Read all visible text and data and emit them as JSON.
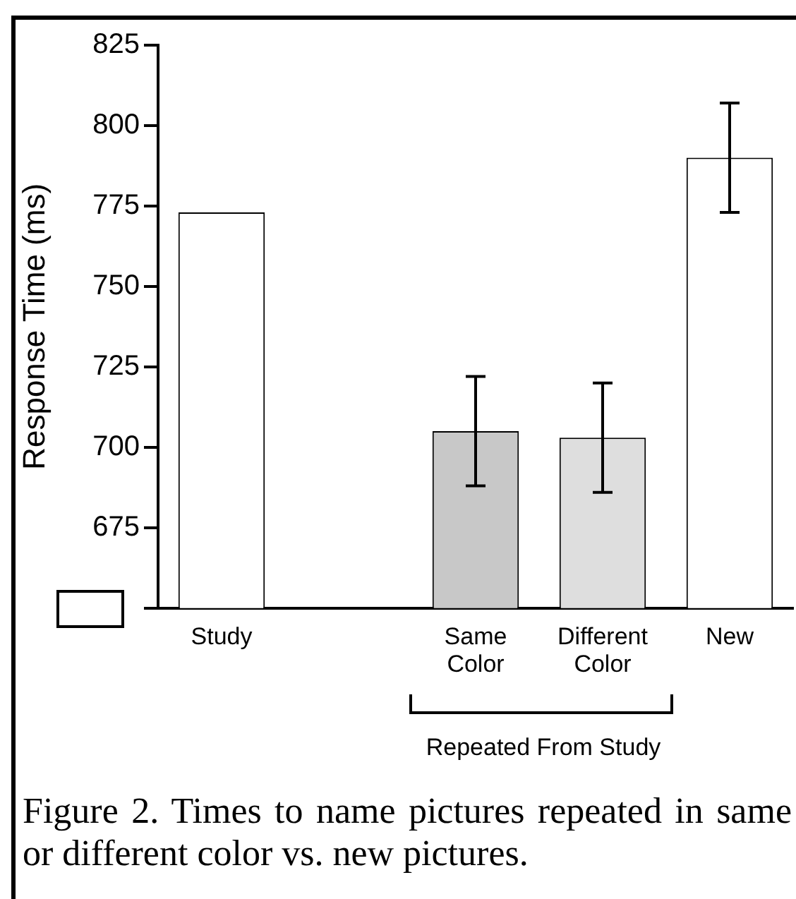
{
  "chart_data": {
    "type": "bar",
    "ylabel": "Response Time (ms)",
    "categories": [
      "Study",
      null,
      "Same Color",
      "Different Color",
      "New"
    ],
    "values": [
      773,
      null,
      705,
      703,
      790
    ],
    "errors": [
      null,
      null,
      17,
      17,
      17
    ],
    "colors": [
      "#ffffff",
      "#ffffff",
      "#c8c8c8",
      "#dedede",
      "#ffffff"
    ],
    "ylim": [
      650,
      825
    ],
    "yticks": [
      {
        "value": 650,
        "label": null
      },
      675,
      700,
      725,
      750,
      775,
      800,
      825
    ],
    "annotations": [
      "Repeated From Study",
      "Figure 2.  Times to name pictures repeated in same or different color vs. new pictures."
    ]
  }
}
